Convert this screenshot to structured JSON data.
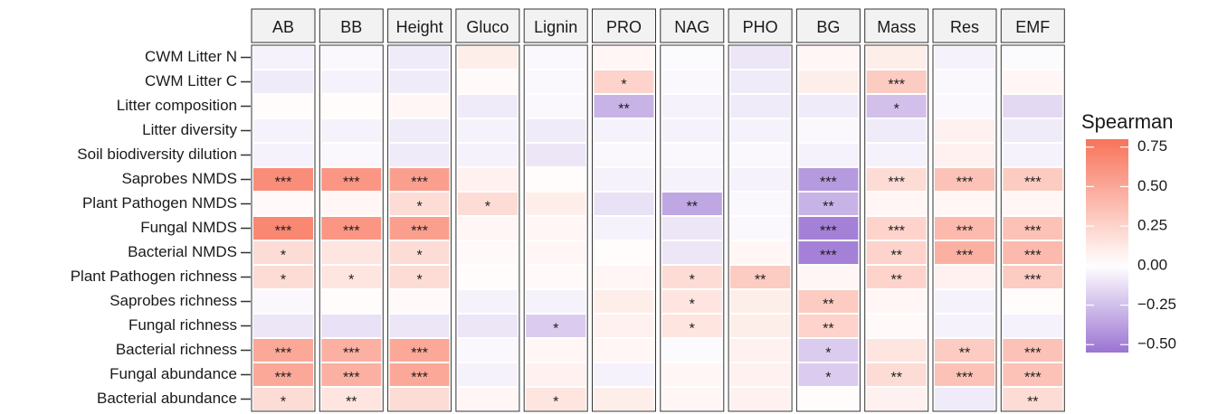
{
  "chart_data": {
    "type": "heatmap",
    "columns": [
      "AB",
      "BB",
      "Height",
      "Gluco",
      "Lignin",
      "PRO",
      "NAG",
      "PHO",
      "BG",
      "Mass",
      "Res",
      "EMF"
    ],
    "rows": [
      "CWM Litter N",
      "CWM Litter C",
      "Litter composition",
      "Litter diversity",
      "Soil biodiversity dilution",
      "Saprobes NMDS",
      "Plant Pathogen NMDS",
      "Fungal NMDS",
      "Bacterial NMDS",
      "Plant Pathogen richness",
      "Saprobes richness",
      "Fungal richness",
      "Bacterial richness",
      "Fungal abundance",
      "Bacterial abundance"
    ],
    "values": [
      [
        -0.05,
        -0.03,
        -0.08,
        0.1,
        -0.03,
        0.05,
        -0.02,
        -0.1,
        0.05,
        0.1,
        -0.05,
        -0.02
      ],
      [
        -0.08,
        -0.05,
        -0.08,
        0.03,
        -0.03,
        0.25,
        -0.03,
        -0.08,
        0.1,
        0.3,
        -0.03,
        0.05
      ],
      [
        0.02,
        0.02,
        0.05,
        -0.08,
        -0.03,
        -0.3,
        -0.05,
        -0.08,
        -0.08,
        -0.25,
        -0.03,
        -0.15
      ],
      [
        -0.05,
        -0.05,
        -0.08,
        -0.05,
        -0.08,
        -0.05,
        -0.05,
        -0.05,
        -0.03,
        -0.08,
        0.08,
        -0.08
      ],
      [
        -0.05,
        -0.03,
        -0.08,
        -0.05,
        -0.1,
        -0.03,
        -0.03,
        -0.03,
        -0.05,
        -0.05,
        0.08,
        -0.05
      ],
      [
        0.65,
        0.6,
        0.55,
        0.08,
        0.02,
        -0.05,
        -0.05,
        -0.05,
        -0.4,
        0.2,
        0.35,
        0.3
      ],
      [
        0.03,
        0.05,
        0.2,
        0.2,
        0.1,
        -0.12,
        -0.35,
        -0.03,
        -0.3,
        0.05,
        0.05,
        0.05
      ],
      [
        0.68,
        0.6,
        0.55,
        0.05,
        0.05,
        -0.05,
        -0.1,
        -0.03,
        -0.5,
        0.25,
        0.4,
        0.35
      ],
      [
        0.2,
        0.15,
        0.2,
        0.03,
        0.05,
        0.02,
        -0.1,
        0.05,
        -0.5,
        0.25,
        0.45,
        0.4
      ],
      [
        0.2,
        0.15,
        0.2,
        0.02,
        0.03,
        0.05,
        0.2,
        0.3,
        0.05,
        0.25,
        0.08,
        0.3
      ],
      [
        -0.03,
        0.02,
        0.03,
        -0.05,
        -0.05,
        0.1,
        0.15,
        0.1,
        0.3,
        0.05,
        -0.05,
        0.02
      ],
      [
        -0.1,
        -0.12,
        -0.1,
        -0.1,
        -0.2,
        0.08,
        0.15,
        0.1,
        0.25,
        0.03,
        -0.05,
        -0.05
      ],
      [
        0.5,
        0.45,
        0.5,
        -0.03,
        0.05,
        0.05,
        -0.02,
        0.08,
        -0.2,
        0.15,
        0.3,
        0.35
      ],
      [
        0.5,
        0.45,
        0.5,
        -0.05,
        0.08,
        -0.05,
        0.05,
        0.08,
        -0.2,
        0.2,
        0.35,
        0.35
      ],
      [
        0.2,
        0.15,
        0.2,
        0.05,
        0.15,
        0.1,
        0.05,
        0.08,
        0.02,
        0.08,
        -0.08,
        0.2
      ]
    ],
    "signif": [
      [
        null,
        null,
        null,
        null,
        null,
        null,
        null,
        null,
        null,
        null,
        null,
        null
      ],
      [
        null,
        null,
        null,
        null,
        null,
        "*",
        null,
        null,
        null,
        "***",
        null,
        null
      ],
      [
        null,
        null,
        null,
        null,
        null,
        "**",
        null,
        null,
        null,
        "*",
        null,
        null
      ],
      [
        null,
        null,
        null,
        null,
        null,
        null,
        null,
        null,
        null,
        null,
        null,
        null
      ],
      [
        null,
        null,
        null,
        null,
        null,
        null,
        null,
        null,
        null,
        null,
        null,
        null
      ],
      [
        "***",
        "***",
        "***",
        null,
        null,
        null,
        null,
        null,
        "***",
        "***",
        "***",
        "***"
      ],
      [
        null,
        null,
        "*",
        "*",
        null,
        null,
        "**",
        null,
        "**",
        null,
        null,
        null
      ],
      [
        "***",
        "***",
        "***",
        null,
        null,
        null,
        null,
        null,
        "***",
        "***",
        "***",
        "***"
      ],
      [
        "*",
        null,
        "*",
        null,
        null,
        null,
        null,
        null,
        "***",
        "**",
        "***",
        "***"
      ],
      [
        "*",
        "*",
        "*",
        null,
        null,
        null,
        "*",
        "**",
        null,
        "**",
        null,
        "***"
      ],
      [
        null,
        null,
        null,
        null,
        null,
        null,
        "*",
        null,
        "**",
        null,
        null,
        null
      ],
      [
        null,
        null,
        null,
        null,
        "*",
        null,
        "*",
        null,
        "**",
        null,
        null,
        null
      ],
      [
        "***",
        "***",
        "***",
        null,
        null,
        null,
        null,
        null,
        "*",
        null,
        "**",
        "***"
      ],
      [
        "***",
        "***",
        "***",
        null,
        null,
        null,
        null,
        null,
        "*",
        "**",
        "***",
        "***"
      ],
      [
        "*",
        "**",
        null,
        null,
        "*",
        null,
        null,
        null,
        null,
        null,
        null,
        "**"
      ]
    ],
    "legend_title": "Spearman",
    "clim": [
      -0.55,
      0.8
    ],
    "cticks": [
      {
        "value": 0.75,
        "label": "0.75"
      },
      {
        "value": 0.5,
        "label": "0.50"
      },
      {
        "value": 0.25,
        "label": "0.25"
      },
      {
        "value": 0,
        "label": "0.00"
      },
      {
        "value": -0.25,
        "label": "−0.25"
      },
      {
        "value": -0.5,
        "label": "−0.50"
      }
    ],
    "colors": {
      "low": "#9b74d3",
      "mid": "#ffffff",
      "high": "#f8735a"
    }
  }
}
